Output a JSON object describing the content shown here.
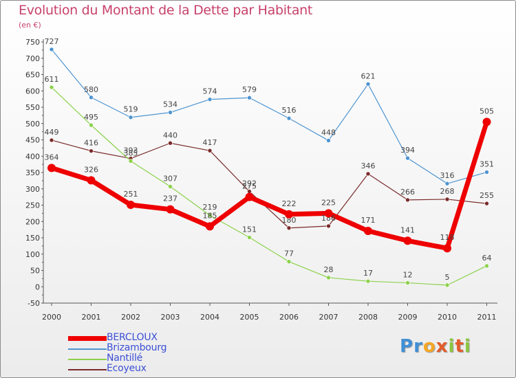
{
  "title": "Evolution du Montant de la Dette par Habitant",
  "unit_label": "(en €)",
  "logo_text": "Proxiti",
  "colors": {
    "title": "#c8416b",
    "axis": "#555555",
    "grid": "#cfcfcf",
    "bercloux": "#ee0000",
    "brizambourg": "#4d94d0",
    "nantille": "#8cd14a",
    "ecoyeux": "#7a2a2a"
  },
  "chart_data": {
    "type": "line",
    "categories": [
      "2000",
      "2001",
      "2002",
      "2003",
      "2004",
      "2005",
      "2006",
      "2007",
      "2008",
      "2009",
      "2010",
      "2011"
    ],
    "ylim": [
      -50,
      750
    ],
    "yticks": [
      -50,
      0,
      50,
      100,
      150,
      200,
      250,
      300,
      350,
      400,
      450,
      500,
      550,
      600,
      650,
      700,
      750
    ],
    "grid": false,
    "legend_position": "bottom-left",
    "series": [
      {
        "name": "BERCLOUX",
        "key": "bercloux",
        "values": [
          364,
          326,
          251,
          237,
          185,
          275,
          222,
          225,
          171,
          141,
          118,
          505
        ]
      },
      {
        "name": "Brizambourg",
        "key": "brizambourg",
        "values": [
          727,
          580,
          519,
          534,
          574,
          579,
          516,
          448,
          621,
          394,
          316,
          351
        ]
      },
      {
        "name": "Nantillé",
        "key": "nantille",
        "values": [
          611,
          495,
          385,
          307,
          219,
          151,
          77,
          28,
          17,
          12,
          5,
          64
        ]
      },
      {
        "name": "Ecoyeux",
        "key": "ecoyeux",
        "values": [
          449,
          416,
          393,
          440,
          417,
          292,
          180,
          186,
          346,
          266,
          268,
          255
        ]
      }
    ]
  }
}
